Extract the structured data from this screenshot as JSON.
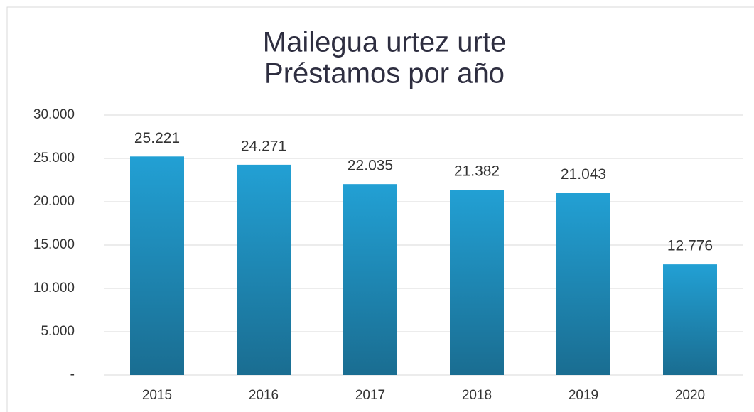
{
  "chart_data": {
    "type": "bar",
    "title": [
      "Mailegua urtez urte",
      "Préstamos por año"
    ],
    "categories": [
      "2015",
      "2016",
      "2017",
      "2018",
      "2019",
      "2020"
    ],
    "values": [
      25221,
      24271,
      22035,
      21382,
      21043,
      12776
    ],
    "value_labels": [
      "25.221",
      "24.271",
      "22.035",
      "21.382",
      "21.043",
      "12.776"
    ],
    "color": "#22a0d4",
    "ylim": [
      0,
      30000
    ],
    "yticks": [
      {
        "value": 0,
        "label": "-"
      },
      {
        "value": 5000,
        "label": "5.000"
      },
      {
        "value": 10000,
        "label": "10.000"
      },
      {
        "value": 15000,
        "label": "15.000"
      },
      {
        "value": 20000,
        "label": "20.000"
      },
      {
        "value": 25000,
        "label": "25.000"
      },
      {
        "value": 30000,
        "label": "30.000"
      }
    ],
    "grid": true
  }
}
